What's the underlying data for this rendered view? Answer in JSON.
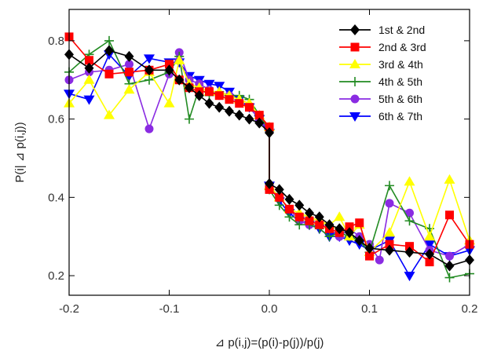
{
  "chart_data": {
    "type": "line",
    "xlabel": "⊿ p(i,j)=(p(i)-p(j))/p(j)",
    "ylabel": "P(i| ⊿ p(i,j))",
    "xlim": [
      -0.2,
      0.2
    ],
    "ylim": [
      0.15,
      0.88
    ],
    "xticks": [
      -0.2,
      -0.1,
      0.0,
      0.1,
      0.2
    ],
    "xtick_labels": [
      "-0.2",
      "-0.1",
      "0.0",
      "0.1",
      "0.2"
    ],
    "yticks": [
      0.2,
      0.4,
      0.6,
      0.8
    ],
    "ytick_labels": [
      "0.2",
      "0.4",
      "0.6",
      "0.8"
    ],
    "grid": false,
    "legend_position": "top-right",
    "series": [
      {
        "name": "1st & 2nd",
        "color": "#000000",
        "marker": "diamond",
        "x": [
          -0.2,
          -0.18,
          -0.16,
          -0.14,
          -0.12,
          -0.1,
          -0.09,
          -0.08,
          -0.07,
          -0.06,
          -0.05,
          -0.04,
          -0.03,
          -0.02,
          -0.01,
          0.0,
          0.0,
          0.01,
          0.02,
          0.03,
          0.04,
          0.05,
          0.06,
          0.07,
          0.08,
          0.09,
          0.1,
          0.12,
          0.14,
          0.16,
          0.18,
          0.2
        ],
        "y": [
          0.765,
          0.73,
          0.775,
          0.76,
          0.725,
          0.725,
          0.7,
          0.68,
          0.66,
          0.64,
          0.63,
          0.62,
          0.61,
          0.6,
          0.59,
          0.565,
          0.435,
          0.42,
          0.395,
          0.38,
          0.36,
          0.35,
          0.33,
          0.32,
          0.31,
          0.29,
          0.27,
          0.265,
          0.26,
          0.255,
          0.225,
          0.24
        ]
      },
      {
        "name": "2nd & 3rd",
        "color": "#ff0000",
        "marker": "square",
        "x": [
          -0.2,
          -0.18,
          -0.16,
          -0.14,
          -0.12,
          -0.1,
          -0.09,
          -0.08,
          -0.07,
          -0.06,
          -0.05,
          -0.04,
          -0.03,
          -0.02,
          -0.01,
          0.0,
          0.0,
          0.01,
          0.02,
          0.03,
          0.04,
          0.05,
          0.06,
          0.07,
          0.08,
          0.09,
          0.1,
          0.12,
          0.14,
          0.16,
          0.18,
          0.2
        ],
        "y": [
          0.81,
          0.75,
          0.715,
          0.72,
          0.725,
          0.74,
          0.7,
          0.68,
          0.67,
          0.67,
          0.66,
          0.65,
          0.64,
          0.63,
          0.61,
          0.58,
          0.42,
          0.4,
          0.37,
          0.35,
          0.34,
          0.33,
          0.32,
          0.31,
          0.325,
          0.335,
          0.25,
          0.28,
          0.275,
          0.235,
          0.355,
          0.28
        ]
      },
      {
        "name": "3rd & 4th",
        "color": "#ffff00",
        "marker": "triangle-up",
        "x": [
          -0.2,
          -0.18,
          -0.16,
          -0.14,
          -0.12,
          -0.1,
          -0.09,
          -0.08,
          -0.07,
          -0.06,
          -0.05,
          -0.04,
          -0.03,
          -0.02,
          -0.01,
          0.0,
          0.0,
          0.01,
          0.02,
          0.03,
          0.04,
          0.05,
          0.06,
          0.07,
          0.08,
          0.09,
          0.1,
          0.12,
          0.14,
          0.16,
          0.18,
          0.2
        ],
        "y": [
          0.64,
          0.7,
          0.61,
          0.675,
          0.72,
          0.64,
          0.75,
          0.69,
          0.68,
          0.67,
          0.67,
          0.66,
          0.65,
          0.64,
          0.61,
          0.58,
          0.43,
          0.4,
          0.37,
          0.36,
          0.35,
          0.34,
          0.33,
          0.35,
          0.3,
          0.33,
          0.26,
          0.31,
          0.44,
          0.3,
          0.445,
          0.29
        ]
      },
      {
        "name": "4th & 5th",
        "color": "#228b22",
        "marker": "plus",
        "x": [
          -0.2,
          -0.18,
          -0.16,
          -0.14,
          -0.12,
          -0.1,
          -0.09,
          -0.08,
          -0.07,
          -0.06,
          -0.05,
          -0.04,
          -0.03,
          -0.02,
          -0.01,
          0.0,
          0.0,
          0.01,
          0.02,
          0.03,
          0.04,
          0.05,
          0.06,
          0.07,
          0.08,
          0.09,
          0.1,
          0.12,
          0.14,
          0.16,
          0.18,
          0.2
        ],
        "y": [
          0.72,
          0.765,
          0.8,
          0.69,
          0.7,
          0.72,
          0.76,
          0.6,
          0.68,
          0.66,
          0.67,
          0.66,
          0.66,
          0.65,
          0.61,
          0.57,
          0.42,
          0.38,
          0.35,
          0.33,
          0.33,
          0.32,
          0.3,
          0.31,
          0.3,
          0.29,
          0.26,
          0.43,
          0.34,
          0.32,
          0.195,
          0.205
        ]
      },
      {
        "name": "5th & 6th",
        "color": "#8a2be2",
        "marker": "circle",
        "x": [
          -0.2,
          -0.18,
          -0.16,
          -0.14,
          -0.12,
          -0.1,
          -0.09,
          -0.08,
          -0.07,
          -0.06,
          -0.05,
          -0.04,
          -0.03,
          -0.02,
          -0.01,
          0.0,
          0.0,
          0.01,
          0.02,
          0.03,
          0.04,
          0.05,
          0.06,
          0.07,
          0.08,
          0.09,
          0.1,
          0.11,
          0.12,
          0.14,
          0.16,
          0.18,
          0.2
        ],
        "y": [
          0.7,
          0.72,
          0.725,
          0.74,
          0.575,
          0.715,
          0.77,
          0.7,
          0.69,
          0.675,
          0.66,
          0.66,
          0.64,
          0.63,
          0.6,
          0.57,
          0.43,
          0.4,
          0.37,
          0.34,
          0.33,
          0.33,
          0.32,
          0.3,
          0.32,
          0.3,
          0.28,
          0.24,
          0.385,
          0.36,
          0.265,
          0.25,
          0.28
        ]
      },
      {
        "name": "6th & 7th",
        "color": "#0000ff",
        "marker": "triangle-down",
        "x": [
          -0.2,
          -0.18,
          -0.16,
          -0.14,
          -0.12,
          -0.1,
          -0.09,
          -0.08,
          -0.07,
          -0.06,
          -0.05,
          -0.04,
          -0.03,
          -0.02,
          -0.01,
          0.0,
          0.0,
          0.01,
          0.02,
          0.03,
          0.04,
          0.05,
          0.06,
          0.07,
          0.08,
          0.09,
          0.1,
          0.12,
          0.14,
          0.16,
          0.18,
          0.2
        ],
        "y": [
          0.665,
          0.65,
          0.765,
          0.71,
          0.755,
          0.745,
          0.745,
          0.71,
          0.7,
          0.69,
          0.685,
          0.67,
          0.65,
          0.63,
          0.6,
          0.565,
          0.43,
          0.39,
          0.36,
          0.34,
          0.33,
          0.32,
          0.3,
          0.3,
          0.29,
          0.28,
          0.265,
          0.29,
          0.2,
          0.28,
          0.25,
          0.265
        ]
      }
    ]
  }
}
